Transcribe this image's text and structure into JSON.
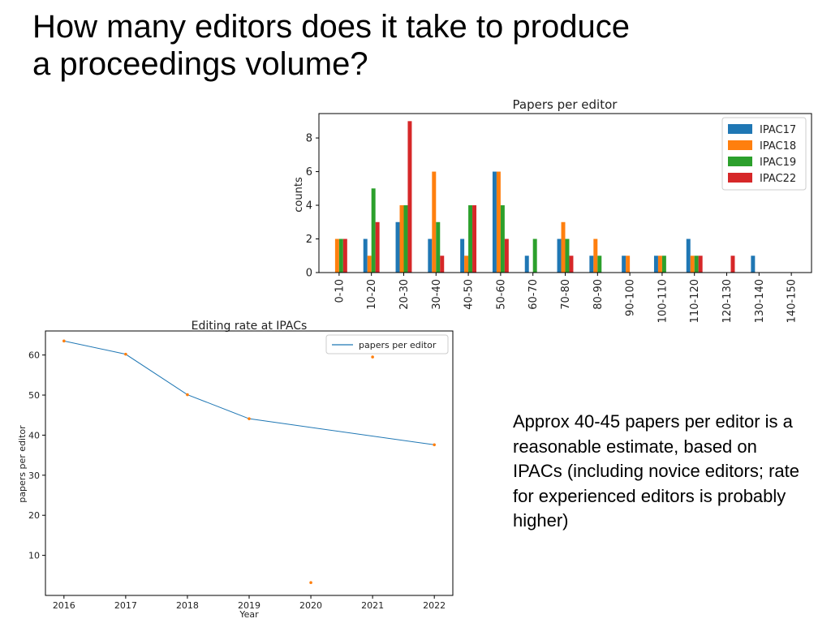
{
  "slide": {
    "title": "How many editors does it take to produce a proceedings volume?",
    "note": "Approx 40-45 papers per editor is a reasonable estimate, based on IPACs (including novice editors; rate for experienced editors is probably higher)"
  },
  "chart_data": [
    {
      "type": "bar",
      "title": "Papers per editor",
      "xlabel": "",
      "ylabel": "counts",
      "ylim": [
        0,
        9.45
      ],
      "yticks": [
        0,
        2,
        4,
        6,
        8
      ],
      "legend_position": "top-right",
      "categories": [
        "0-10",
        "10-20",
        "20-30",
        "30-40",
        "40-50",
        "50-60",
        "60-70",
        "70-80",
        "80-90",
        "90-100",
        "100-110",
        "110-120",
        "120-130",
        "130-140",
        "140-150"
      ],
      "series": [
        {
          "name": "IPAC17",
          "color": "#1f77b4",
          "values": [
            0,
            2,
            3,
            2,
            2,
            6,
            1,
            2,
            1,
            1,
            1,
            2,
            0,
            1,
            0
          ]
        },
        {
          "name": "IPAC18",
          "color": "#ff7f0e",
          "values": [
            2,
            1,
            4,
            6,
            1,
            6,
            0,
            3,
            2,
            1,
            1,
            1,
            0,
            0,
            0
          ]
        },
        {
          "name": "IPAC19",
          "color": "#2ca02c",
          "values": [
            2,
            5,
            4,
            3,
            4,
            4,
            2,
            2,
            1,
            0,
            1,
            1,
            0,
            0,
            0
          ]
        },
        {
          "name": "IPAC22",
          "color": "#d62728",
          "values": [
            2,
            3,
            9,
            1,
            4,
            2,
            0,
            1,
            0,
            0,
            0,
            1,
            1,
            0,
            0
          ]
        }
      ]
    },
    {
      "type": "line",
      "title": "Editing rate at IPACs",
      "xlabel": "Year",
      "ylabel": "papers per editor",
      "x": [
        2016,
        2017,
        2018,
        2019,
        2020,
        2021,
        2022
      ],
      "xlim": [
        2015.7,
        2022.3
      ],
      "ylim": [
        0,
        66
      ],
      "yticks": [
        10,
        20,
        30,
        40,
        50,
        60
      ],
      "legend_position": "top-right",
      "series": [
        {
          "name": "papers per editor",
          "color": "#1f77b4",
          "x": [
            2016,
            2017,
            2018,
            2019,
            2022
          ],
          "values": [
            63.5,
            60.2,
            50.1,
            44.1,
            37.6
          ]
        }
      ],
      "points": {
        "color": "#ff7f0e",
        "x": [
          2016,
          2017,
          2018,
          2019,
          2020,
          2021,
          2022
        ],
        "values": [
          63.5,
          60.2,
          50.1,
          44.1,
          3.2,
          59.5,
          37.6
        ]
      }
    }
  ]
}
